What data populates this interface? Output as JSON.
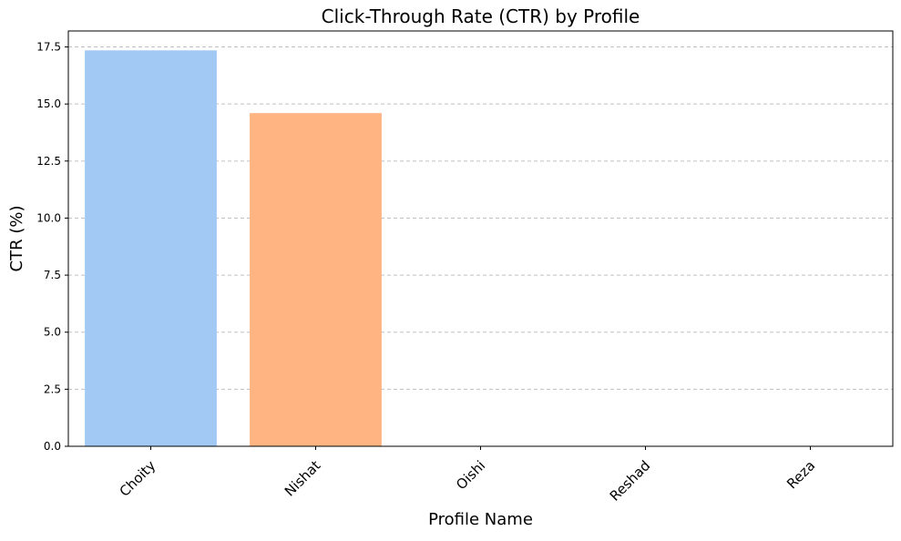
{
  "chart_data": {
    "type": "bar",
    "title": "Click-Through Rate (CTR) by Profile",
    "xlabel": "Profile Name",
    "ylabel": "CTR (%)",
    "categories": [
      "Choity",
      "Nishat",
      "Oishi",
      "Reshad",
      "Reza"
    ],
    "values": [
      17.35,
      14.6,
      0,
      0,
      0
    ],
    "colors": [
      "#a1c9f4",
      "#ffb482",
      "#8de5a1",
      "#ff9f9b",
      "#d0bbff"
    ],
    "ylim": [
      0,
      18.2
    ],
    "yticks": [
      0.0,
      2.5,
      5.0,
      7.5,
      10.0,
      12.5,
      15.0,
      17.5
    ],
    "ytick_labels": [
      "0.0",
      "2.5",
      "5.0",
      "7.5",
      "10.0",
      "12.5",
      "15.0",
      "17.5"
    ],
    "grid": {
      "axis": "y",
      "style": "dashed",
      "color": "#c0c0c0"
    },
    "xtick_rotation": 45
  }
}
